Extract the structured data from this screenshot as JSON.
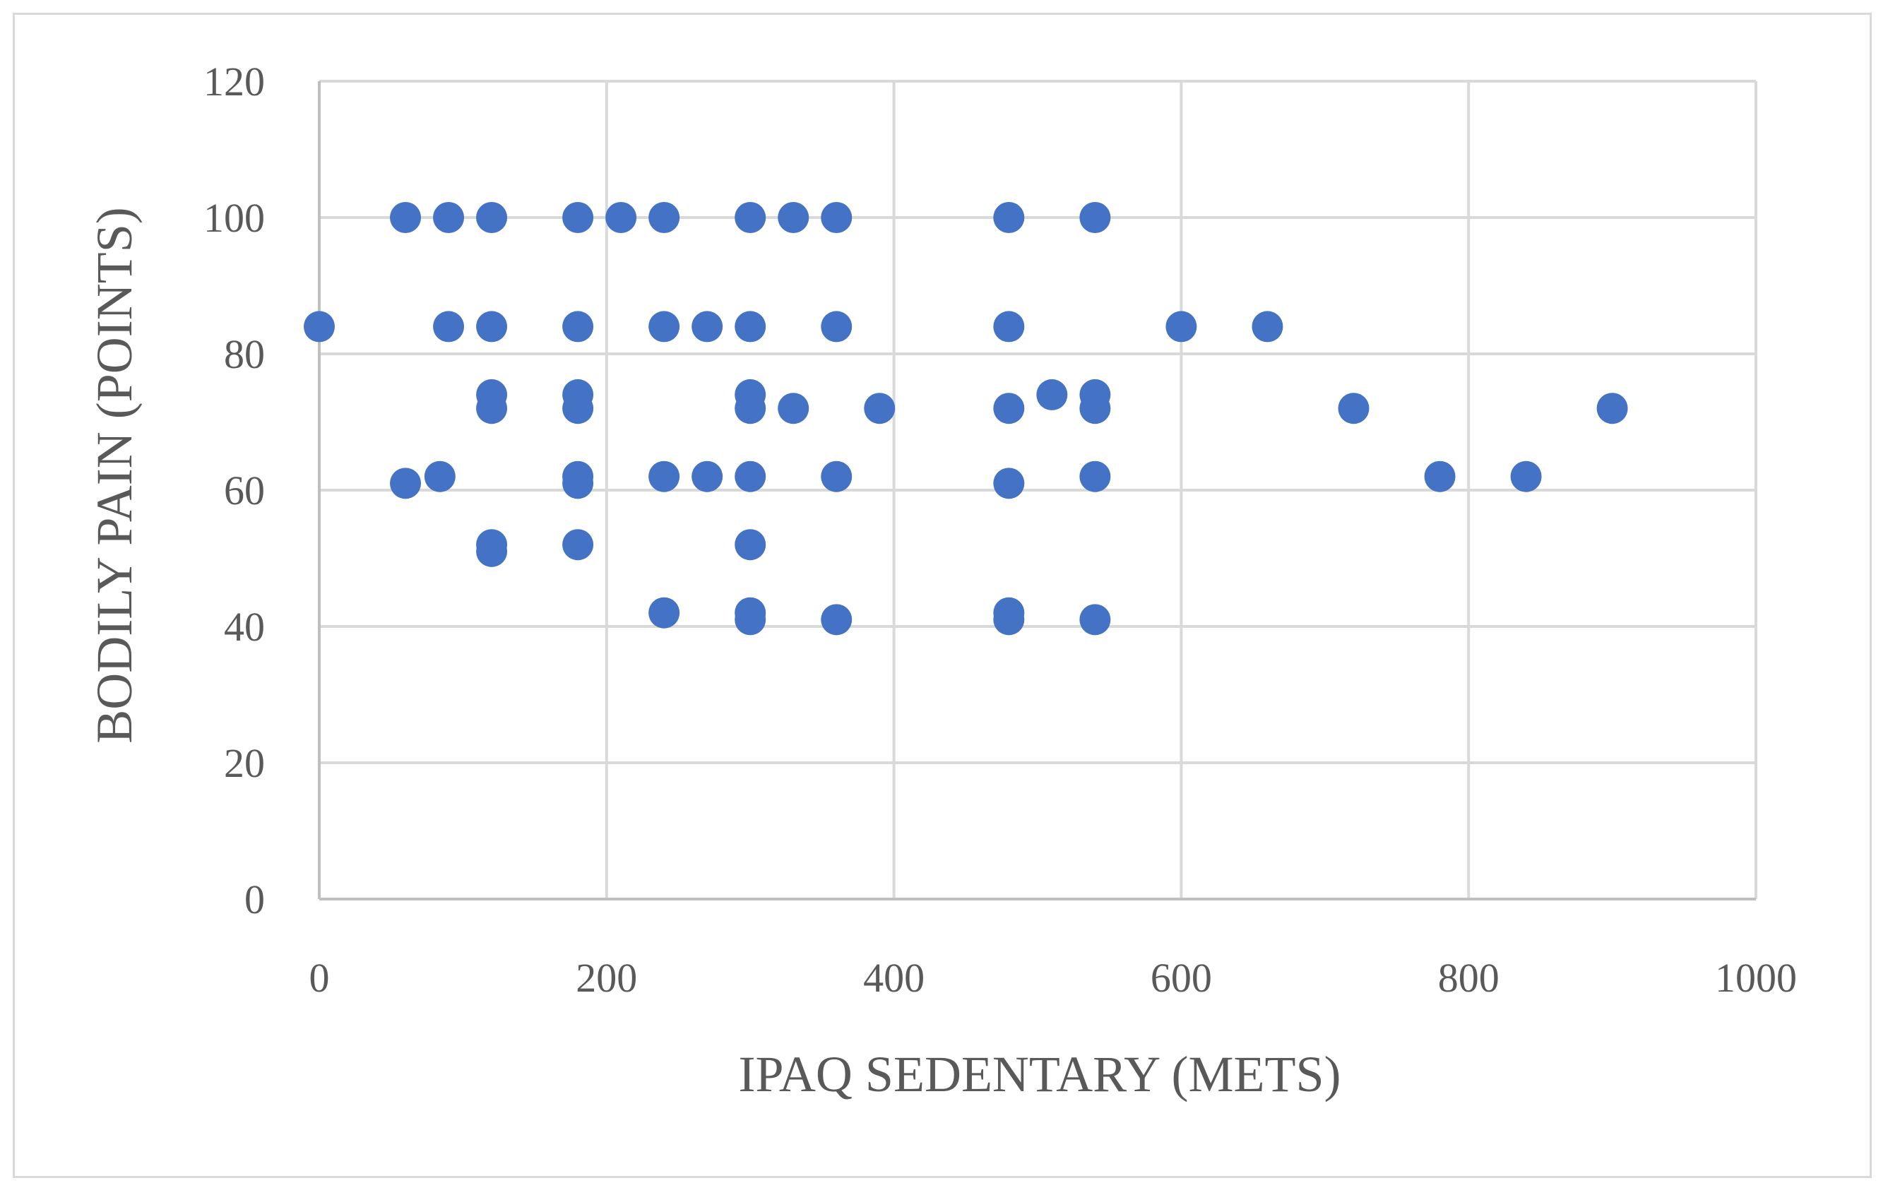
{
  "chart_data": {
    "type": "scatter",
    "title": "",
    "xlabel": "IPAQ SEDENTARY (METS)",
    "ylabel": "BODILY PAIN (POINTS)",
    "xlim": [
      0,
      1000
    ],
    "ylim": [
      0,
      120
    ],
    "x_ticks": [
      0,
      200,
      400,
      600,
      800,
      1000
    ],
    "y_ticks": [
      0,
      20,
      40,
      60,
      80,
      100,
      120
    ],
    "x_tick_labels": [
      "0",
      "200",
      "400",
      "600",
      "800",
      "1000"
    ],
    "y_tick_labels": [
      "0",
      "20",
      "40",
      "60",
      "80",
      "100",
      "120"
    ],
    "grid": true,
    "legend": "none",
    "marker_color": "#4472C4",
    "grid_color": "#d9d9d9",
    "text_color": "#595959",
    "series": [
      {
        "values": [
          [
            60,
            100
          ],
          [
            90,
            100
          ],
          [
            120,
            100
          ],
          [
            180,
            100
          ],
          [
            210,
            100
          ],
          [
            240,
            100
          ],
          [
            300,
            100
          ],
          [
            330,
            100
          ],
          [
            360,
            100
          ],
          [
            480,
            100
          ],
          [
            540,
            100
          ],
          [
            0,
            84
          ],
          [
            90,
            84
          ],
          [
            120,
            84
          ],
          [
            180,
            84
          ],
          [
            240,
            84
          ],
          [
            270,
            84
          ],
          [
            300,
            84
          ],
          [
            360,
            84
          ],
          [
            480,
            84
          ],
          [
            600,
            84
          ],
          [
            660,
            84
          ],
          [
            120,
            74
          ],
          [
            180,
            74
          ],
          [
            300,
            74
          ],
          [
            510,
            74
          ],
          [
            540,
            74
          ],
          [
            120,
            72
          ],
          [
            180,
            72
          ],
          [
            300,
            72
          ],
          [
            330,
            72
          ],
          [
            390,
            72
          ],
          [
            480,
            72
          ],
          [
            540,
            72
          ],
          [
            720,
            72
          ],
          [
            900,
            72
          ],
          [
            60,
            61
          ],
          [
            84,
            62
          ],
          [
            180,
            62
          ],
          [
            180,
            61
          ],
          [
            240,
            62
          ],
          [
            270,
            62
          ],
          [
            300,
            62
          ],
          [
            360,
            62
          ],
          [
            480,
            61
          ],
          [
            540,
            62
          ],
          [
            780,
            62
          ],
          [
            840,
            62
          ],
          [
            120,
            52
          ],
          [
            120,
            51
          ],
          [
            180,
            52
          ],
          [
            300,
            52
          ],
          [
            240,
            42
          ],
          [
            300,
            42
          ],
          [
            300,
            41
          ],
          [
            360,
            41
          ],
          [
            480,
            42
          ],
          [
            480,
            41
          ],
          [
            540,
            41
          ]
        ]
      }
    ]
  }
}
